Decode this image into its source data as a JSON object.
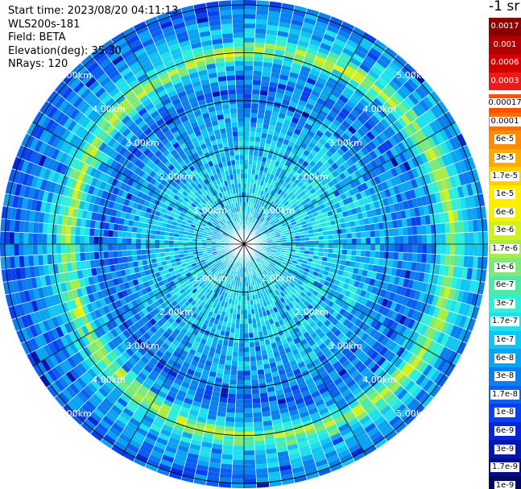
{
  "info": {
    "start_time": "Start time: 2023/08/20 04:11:13",
    "device": "WLS200s-181",
    "field": "Field: BETA",
    "elevation": "Elevation(deg): 35.30",
    "nrays": "NRays: 120"
  },
  "colorbar": {
    "unit": "-1 sr",
    "upper": [
      {
        "label": "0.0017",
        "color": "#8b0000"
      },
      {
        "label": "0.001",
        "color": "#b00000"
      },
      {
        "label": "0.0006",
        "color": "#d40000"
      },
      {
        "label": "0.0003",
        "color": "#ee1a1a"
      }
    ],
    "lower": [
      {
        "label": "0.00017",
        "color": "#ff5000"
      },
      {
        "label": "0.0001",
        "color": "#ff6e00"
      },
      {
        "label": "6e-5",
        "color": "#ff8c00"
      },
      {
        "label": "3e-5",
        "color": "#ffaa00"
      },
      {
        "label": "1.7e-5",
        "color": "#ffd000"
      },
      {
        "label": "1e-5",
        "color": "#ffee00"
      },
      {
        "label": "6e-6",
        "color": "#f2f200"
      },
      {
        "label": "3e-6",
        "color": "#d2f020"
      },
      {
        "label": "1.7e-6",
        "color": "#a8ec48"
      },
      {
        "label": "1e-6",
        "color": "#7ee878"
      },
      {
        "label": "6e-7",
        "color": "#4ee8a8"
      },
      {
        "label": "3e-7",
        "color": "#2ef0d8"
      },
      {
        "label": "1.7e-7",
        "color": "#20e0f0"
      },
      {
        "label": "1e-7",
        "color": "#10c4f4"
      },
      {
        "label": "6e-8",
        "color": "#0aa4f2"
      },
      {
        "label": "3e-8",
        "color": "#0a80f0"
      },
      {
        "label": "1.7e-8",
        "color": "#0a5ef0"
      },
      {
        "label": "1e-8",
        "color": "#0840ee"
      },
      {
        "label": "6e-9",
        "color": "#0626d8"
      },
      {
        "label": "3e-9",
        "color": "#0416b0"
      },
      {
        "label": "1.7e-9",
        "color": "#020c88"
      },
      {
        "label": "1e-9",
        "color": "#010660"
      }
    ]
  },
  "chart_data": {
    "type": "heatmap",
    "projection": "polar PPI",
    "nrays": 120,
    "azimuth_step_deg": 3,
    "range_rings_km": [
      1.0,
      2.0,
      3.0,
      4.0,
      5.0
    ],
    "ring_labels": [
      "1.00km",
      "2.00km",
      "3.00km",
      "4.00km",
      "5.00km"
    ],
    "spoke_azimuths_deg": [
      0,
      30,
      60,
      90,
      120,
      150,
      180,
      210,
      240,
      270,
      300,
      330
    ],
    "max_range_km": 5.1,
    "value_profile": [
      {
        "range_km": 0.3,
        "beta": 1.7e-07
      },
      {
        "range_km": 1.5,
        "beta": 1.7e-07
      },
      {
        "range_km": 2.5,
        "beta": 1e-07
      },
      {
        "range_km": 3.3,
        "beta": 3e-08
      },
      {
        "range_km": 3.8,
        "beta": 1.7e-07
      },
      {
        "range_km": 4.0,
        "beta": 3e-06
      },
      {
        "range_km": 4.3,
        "beta": 1.7e-07
      },
      {
        "range_km": 5.0,
        "beta": 3e-08
      }
    ],
    "grid": true
  }
}
